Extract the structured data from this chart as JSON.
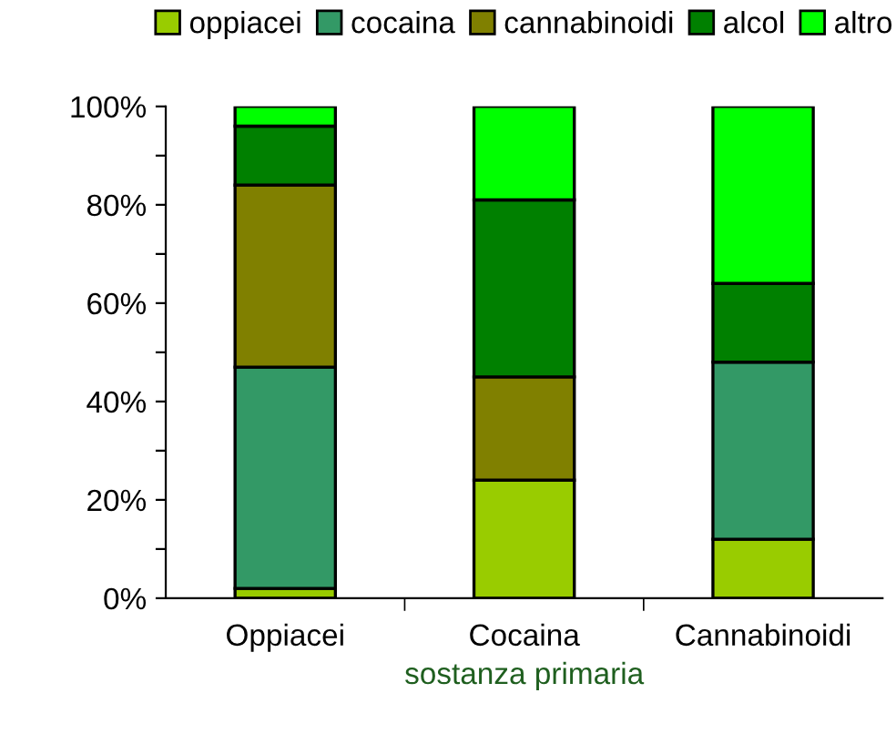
{
  "chart_data": {
    "type": "bar",
    "stacked": true,
    "xlabel": "sostanza primaria",
    "categories": [
      "Oppiacei",
      "Cocaina",
      "Cannabinoidi"
    ],
    "series": [
      {
        "name": "oppiacei",
        "color": "#99cc00",
        "values": [
          2,
          24,
          12
        ]
      },
      {
        "name": "cocaina",
        "color": "#339966",
        "values": [
          45,
          0,
          36
        ]
      },
      {
        "name": "cannabinoidi",
        "color": "#808000",
        "values": [
          37,
          21,
          0
        ]
      },
      {
        "name": "alcol",
        "color": "#008000",
        "values": [
          12,
          36,
          16
        ]
      },
      {
        "name": "altro",
        "color": "#00ff00",
        "values": [
          4,
          19,
          36
        ]
      }
    ],
    "ylim": [
      0,
      100
    ],
    "yticks": [
      {
        "value": 0,
        "label": "0%"
      },
      {
        "value": 10,
        "label": null
      },
      {
        "value": 20,
        "label": "20%"
      },
      {
        "value": 30,
        "label": null
      },
      {
        "value": 40,
        "label": "40%"
      },
      {
        "value": 50,
        "label": null
      },
      {
        "value": 60,
        "label": "60%"
      },
      {
        "value": 70,
        "label": null
      },
      {
        "value": 80,
        "label": "80%"
      },
      {
        "value": 90,
        "label": null
      },
      {
        "value": 100,
        "label": "100%"
      }
    ],
    "grid": false,
    "legend": "top"
  }
}
